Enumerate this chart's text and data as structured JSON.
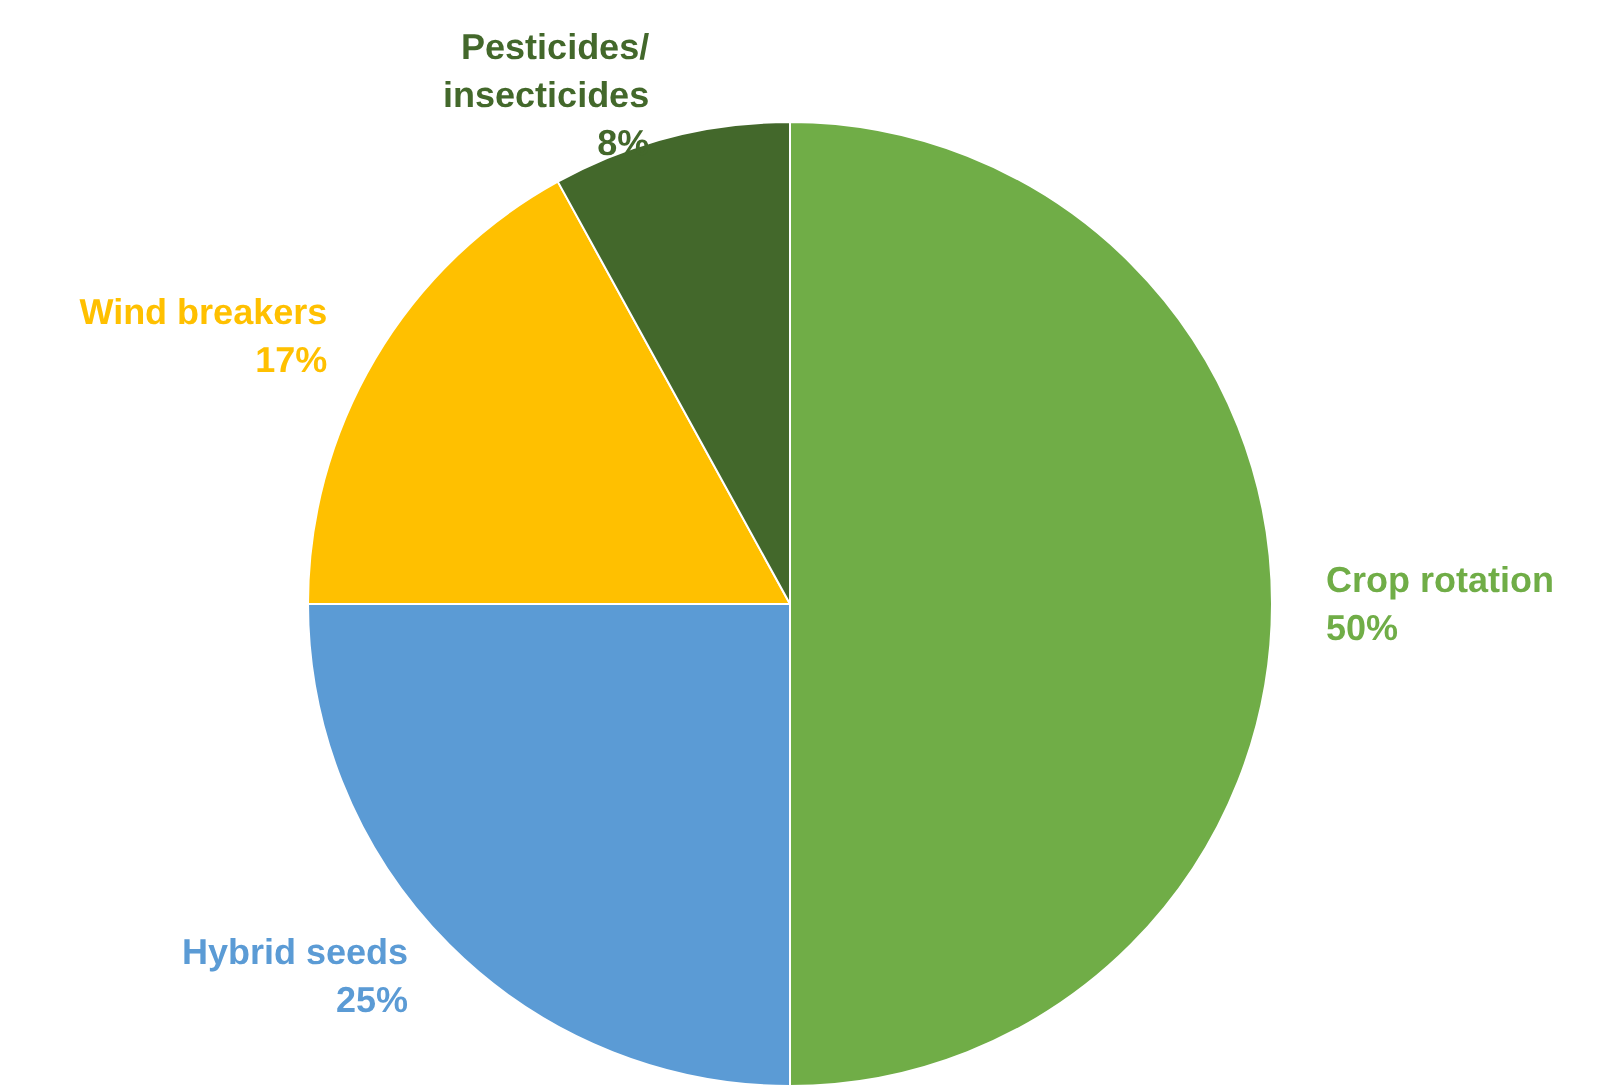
{
  "chart_data": {
    "type": "pie",
    "categories": [
      "Crop rotation",
      "Hybrid seeds",
      "Wind breakers",
      "Pesticides/insecticides"
    ],
    "values": [
      50,
      25,
      17,
      8
    ],
    "value_labels": [
      "50%",
      "25%",
      "17%",
      "8%"
    ],
    "colors": [
      "#70ad47",
      "#5b9bd5",
      "#ffc000",
      "#43682b"
    ],
    "legend": false
  }
}
